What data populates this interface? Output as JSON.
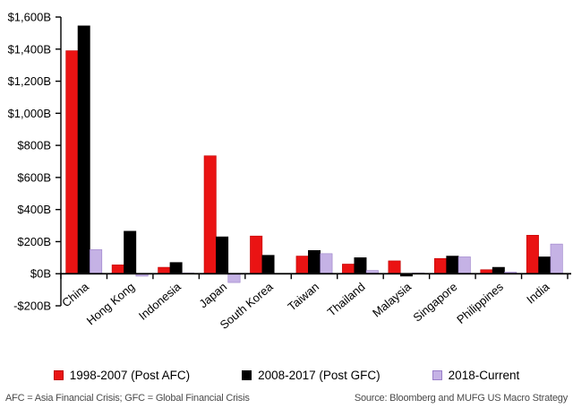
{
  "chart_data": {
    "type": "bar",
    "categories": [
      "China",
      "Hong Kong",
      "Indonesia",
      "Japan",
      "South Korea",
      "Taiwan",
      "Thailand",
      "Malaysia",
      "Singapore",
      "Philippines",
      "India"
    ],
    "series": [
      {
        "name": "1998-2007 (Post AFC)",
        "color": "#EA1313",
        "border": "#C00000",
        "values": [
          1390,
          55,
          40,
          735,
          235,
          110,
          60,
          80,
          95,
          25,
          240
        ]
      },
      {
        "name": "2008-2017 (Post GFC)",
        "color": "#000000",
        "border": "#000000",
        "values": [
          1545,
          265,
          70,
          230,
          115,
          145,
          100,
          -15,
          110,
          40,
          105
        ]
      },
      {
        "name": "2018-Current",
        "color": "#C5B2E5",
        "border": "#9A7FC9",
        "values": [
          150,
          -15,
          5,
          -55,
          0,
          125,
          20,
          5,
          105,
          10,
          185
        ]
      }
    ],
    "ylim": [
      -200,
      1600
    ],
    "ytick_step": 200,
    "ytick_labels": [
      "-$200B",
      "$0B",
      "$200B",
      "$400B",
      "$600B",
      "$800B",
      "$1,000B",
      "$1,200B",
      "$1,400B",
      "$1,600B"
    ],
    "grid": false,
    "legend_position": "bottom",
    "axis_color": "#000000"
  },
  "footnotes": {
    "left": "AFC = Asia Financial Crisis; GFC = Global Financial Crisis",
    "right": "Source: Bloomberg and MUFG US Macro Strategy"
  }
}
